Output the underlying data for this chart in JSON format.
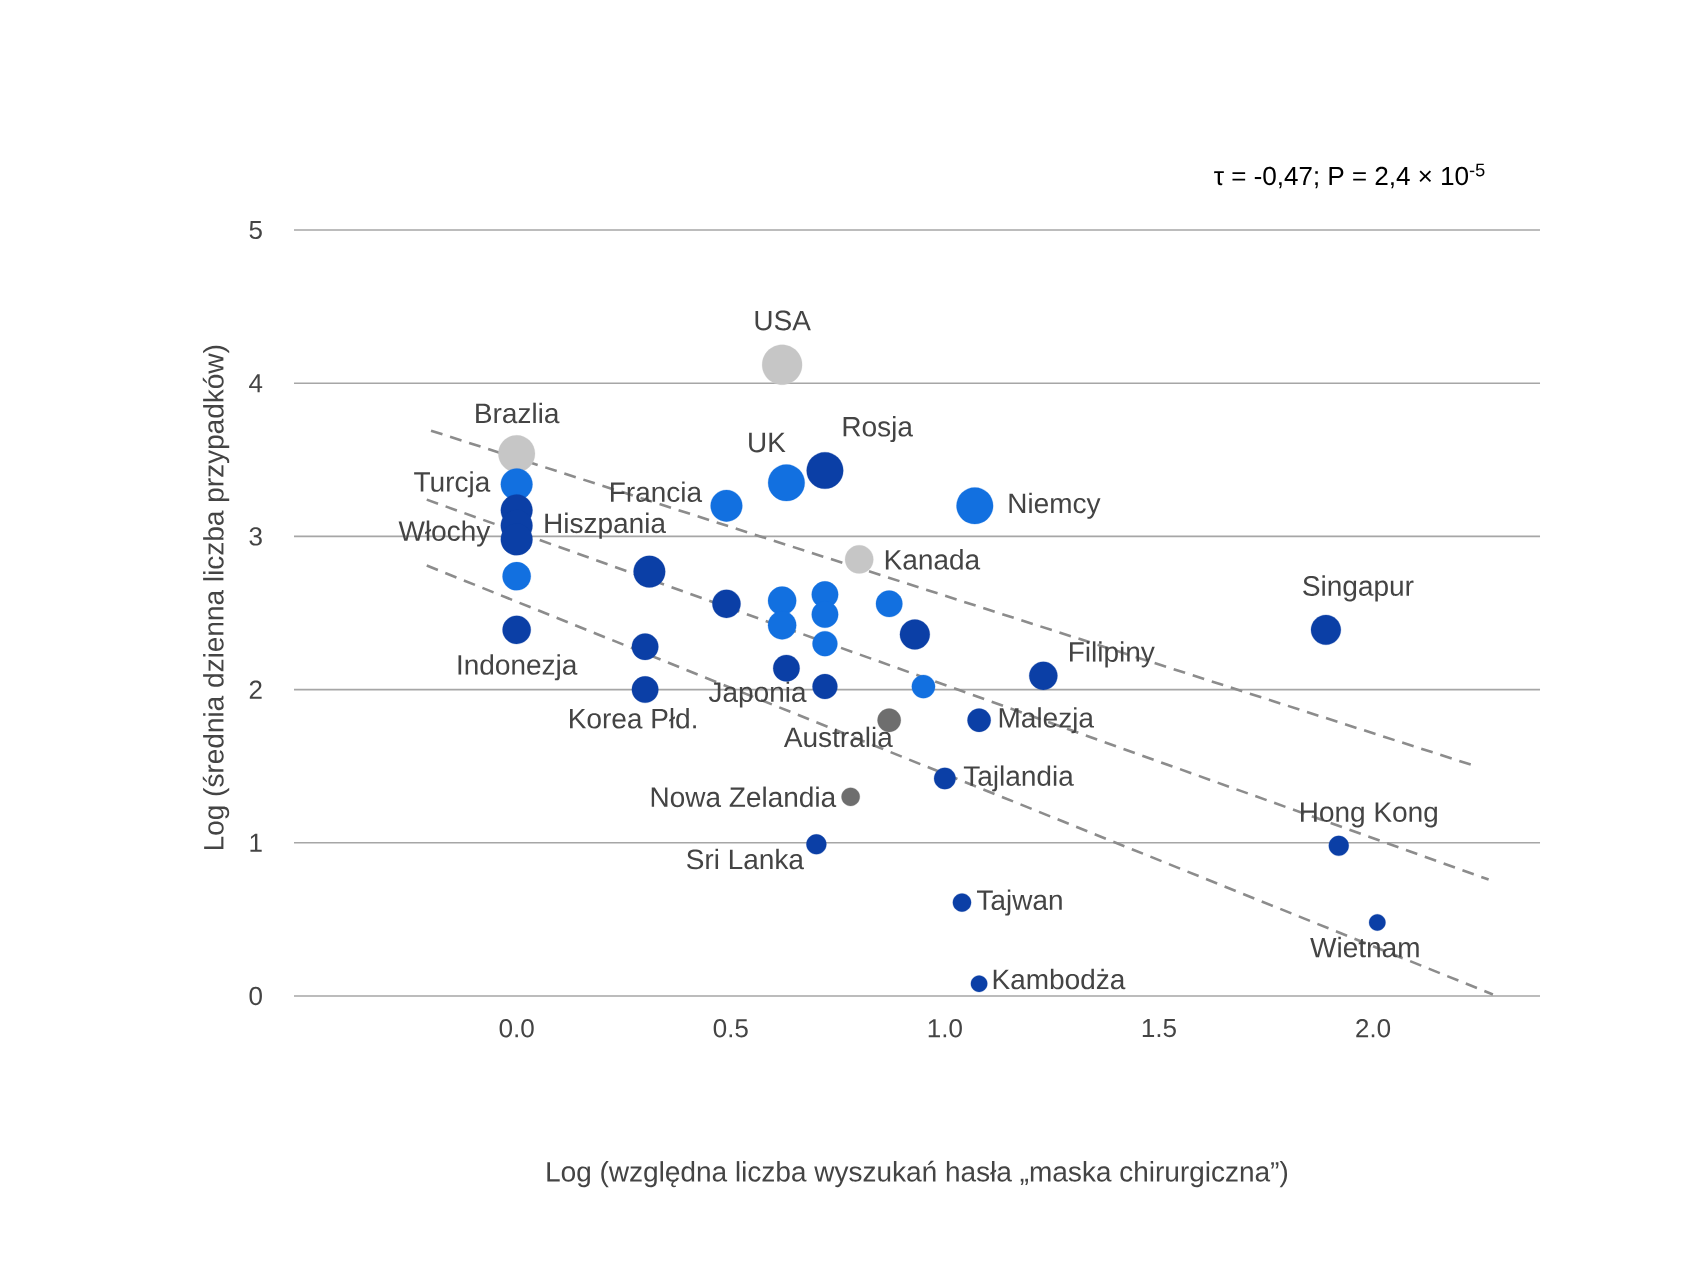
{
  "chart_data": {
    "type": "bubble",
    "xlabel": "Log (względna liczba wyszukań hasła „maska chirurgiczna”)",
    "ylabel": "Log (średnia dzienna liczba przypadków)",
    "xlim": [
      -0.52,
      2.39
    ],
    "ylim": [
      0,
      5
    ],
    "xticks": [
      {
        "value": 0,
        "label": "0.0"
      },
      {
        "value": 0.5,
        "label": "0.5"
      },
      {
        "value": 1,
        "label": "1.0"
      },
      {
        "value": 1.5,
        "label": "1.5"
      },
      {
        "value": 2,
        "label": "2.0"
      }
    ],
    "yticks": [
      0,
      1,
      2,
      3,
      4,
      5
    ],
    "grid": "y",
    "marker": "circle",
    "series": [
      {
        "color": "#c6c6c6",
        "x": [
          0.62,
          0.0,
          0.8
        ],
        "values": [
          4.12,
          3.54,
          2.85
        ],
        "sizes": [
          1.0,
          0.84,
          0.5
        ]
      },
      {
        "color": "#1270e0",
        "x": [
          0.0,
          0.0,
          0.49,
          0.63,
          1.07,
          0.62,
          0.62,
          0.72,
          0.72,
          0.72,
          0.87,
          0.95
        ],
        "values": [
          3.34,
          2.74,
          3.2,
          3.35,
          3.2,
          2.58,
          2.42,
          2.62,
          2.49,
          2.3,
          2.56,
          2.02
        ],
        "sizes": [
          0.63,
          0.5,
          0.63,
          0.84,
          0.84,
          0.5,
          0.5,
          0.44,
          0.44,
          0.39,
          0.44,
          0.34
        ]
      },
      {
        "color": "#0b3fa6",
        "x": [
          0.0,
          0.0,
          0.0,
          0.0,
          0.72,
          0.31,
          0.49,
          0.93,
          0.3,
          0.3,
          0.63,
          0.72,
          1.23,
          1.89,
          1.08,
          1.0,
          0.7,
          1.04,
          1.08,
          1.92,
          2.01
        ],
        "values": [
          3.17,
          3.07,
          2.98,
          2.39,
          3.43,
          2.77,
          2.56,
          2.36,
          2.28,
          2.0,
          2.14,
          2.02,
          2.09,
          2.39,
          1.8,
          1.42,
          0.99,
          0.61,
          0.08,
          0.98,
          0.48
        ],
        "sizes": [
          0.63,
          0.63,
          0.63,
          0.5,
          0.84,
          0.63,
          0.5,
          0.56,
          0.44,
          0.44,
          0.44,
          0.39,
          0.5,
          0.56,
          0.34,
          0.29,
          0.25,
          0.21,
          0.17,
          0.25,
          0.17
        ]
      },
      {
        "color": "#6e6e6e",
        "x": [
          0.87,
          0.78
        ],
        "values": [
          1.8,
          1.3
        ],
        "sizes": [
          0.34,
          0.21
        ]
      },
      {
        "type": "line",
        "line_style": "dashed",
        "marker": "none",
        "color": "#8c8c8c",
        "x": [
          -0.2,
          2.24
        ],
        "values": [
          3.69,
          1.5
        ]
      },
      {
        "type": "line",
        "line_style": "dashed",
        "marker": "none",
        "color": "#8c8c8c",
        "x": [
          -0.21,
          2.27
        ],
        "values": [
          3.24,
          0.76
        ]
      },
      {
        "type": "line",
        "line_style": "dashed",
        "marker": "none",
        "color": "#8c8c8c",
        "x": [
          -0.21,
          2.28
        ],
        "values": [
          2.81,
          0.01
        ]
      }
    ],
    "annotations": [
      "τ = -0,47; P  = 2,4 × 10$^{-5}$",
      {
        "text": "USA",
        "x": 0.62,
        "y": 4.12
      },
      {
        "text": "Brazlia",
        "x": 0.0,
        "y": 3.54
      },
      {
        "text": "Turcja",
        "x": 0.0,
        "y": 3.34
      },
      {
        "text": "Hiszpania",
        "x": 0.0,
        "y": 3.07
      },
      {
        "text": "Włochy",
        "x": 0.0,
        "y": 2.98
      },
      {
        "text": "Indonezja",
        "x": 0.0,
        "y": 2.39
      },
      {
        "text": "Francia",
        "x": 0.49,
        "y": 3.2
      },
      {
        "text": "UK",
        "x": 0.63,
        "y": 3.35
      },
      {
        "text": "Rosja",
        "x": 0.72,
        "y": 3.43
      },
      {
        "text": "Niemcy",
        "x": 1.07,
        "y": 3.2
      },
      {
        "text": "Kanada",
        "x": 0.8,
        "y": 2.85
      },
      {
        "text": "Singapur",
        "x": 1.89,
        "y": 2.39
      },
      {
        "text": "Filipiny",
        "x": 1.23,
        "y": 2.09
      },
      {
        "text": "Japonia",
        "x": 0.72,
        "y": 2.02
      },
      {
        "text": "Korea Płd.",
        "x": 0.3,
        "y": 2.0
      },
      {
        "text": "Australia",
        "x": 0.87,
        "y": 1.8
      },
      {
        "text": "Malezja",
        "x": 1.08,
        "y": 1.8
      },
      {
        "text": "Tajlandia",
        "x": 1.0,
        "y": 1.42
      },
      {
        "text": "Nowa Zelandia",
        "x": 0.78,
        "y": 1.3
      },
      {
        "text": "Sri Lanka",
        "x": 0.7,
        "y": 0.99
      },
      {
        "text": "Tajwan",
        "x": 1.04,
        "y": 0.61
      },
      {
        "text": "Kambodża",
        "x": 1.08,
        "y": 0.08
      },
      {
        "text": "Hong Kong",
        "x": 1.92,
        "y": 0.98
      },
      {
        "text": "Wietnam",
        "x": 2.01,
        "y": 0.48
      }
    ]
  }
}
